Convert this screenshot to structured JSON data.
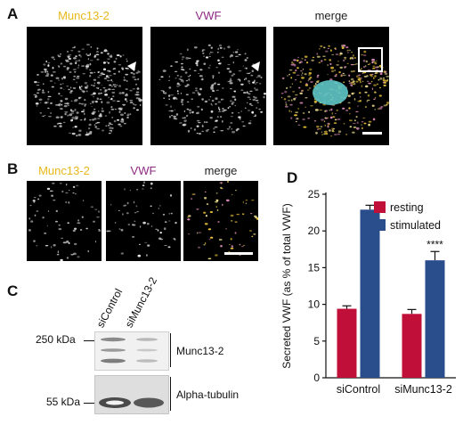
{
  "panel_a": {
    "letter": "A",
    "labels": [
      "Munc13-2",
      "VWF",
      "merge"
    ]
  },
  "panel_b": {
    "letter": "B",
    "labels": [
      "Munc13-2",
      "VWF",
      "merge"
    ]
  },
  "panel_c": {
    "letter": "C",
    "lanes": [
      "siControl",
      "siMunc13-2"
    ],
    "markers": [
      "250 kDa",
      "55 kDa"
    ],
    "bands": [
      "Munc13-2",
      "Alpha-tubulin"
    ]
  },
  "colors": {
    "munc13_2": "#e8b81a",
    "vwf": "#8e2a83",
    "resting": "#c0103a",
    "stimulated": "#2a4d8c"
  },
  "chart_data": {
    "letter": "D",
    "type": "bar",
    "categories": [
      "siControl",
      "siMunc13-2"
    ],
    "series": [
      {
        "name": "resting",
        "values": [
          9.4,
          8.7
        ],
        "errors": [
          0.4,
          0.6
        ]
      },
      {
        "name": "stimulated",
        "values": [
          22.9,
          16.0
        ],
        "errors": [
          0.6,
          1.2
        ]
      }
    ],
    "ylabel": "Secreted VWF (as % of total VWF)",
    "ylim": [
      0,
      25
    ],
    "yticks": [
      "0",
      "5",
      "10",
      "15",
      "20",
      "25"
    ],
    "annotation": "****",
    "legend_position": "top-right"
  }
}
